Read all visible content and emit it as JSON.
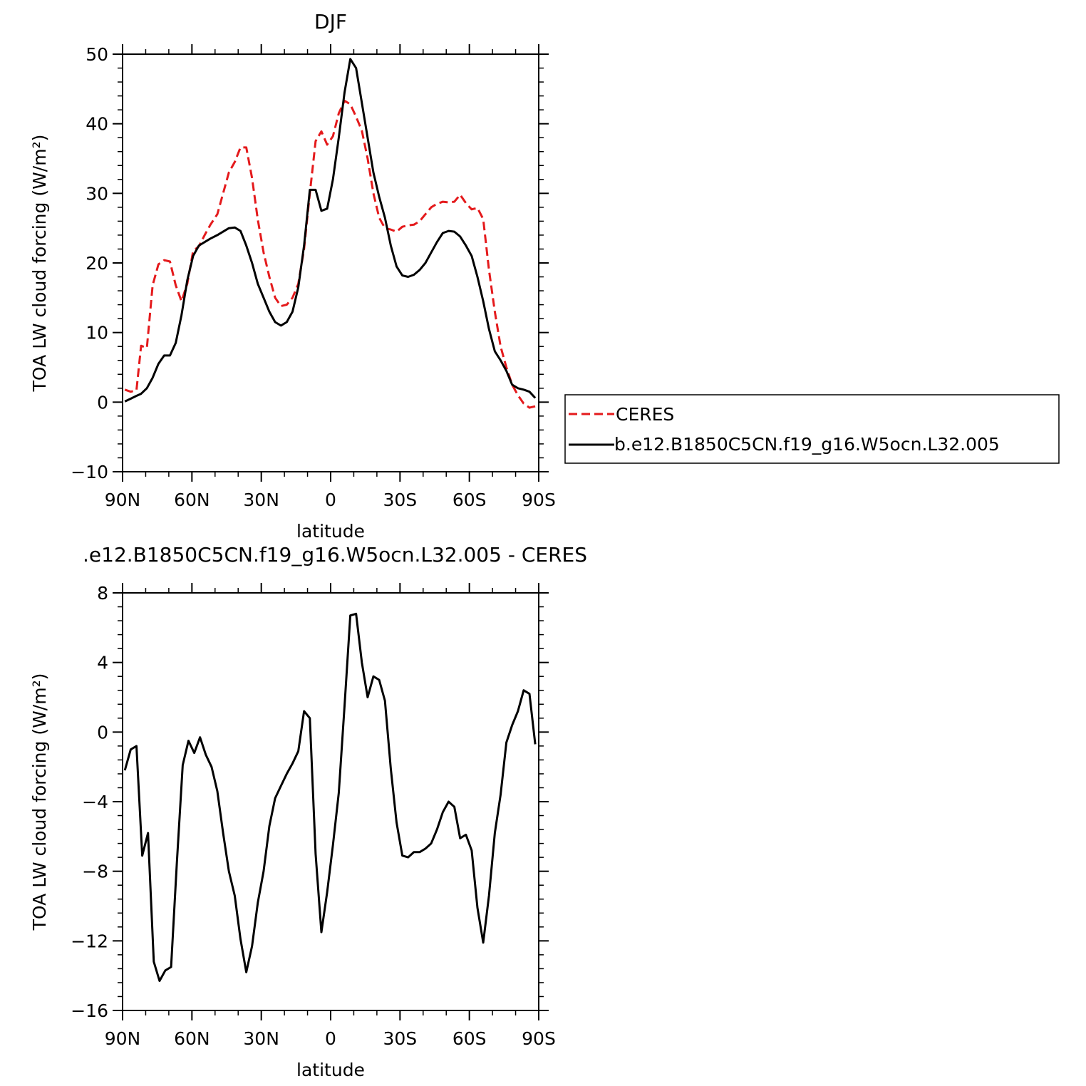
{
  "chart_data": [
    {
      "type": "line",
      "title": "DJF",
      "xlabel": "latitude",
      "ylabel": "TOA LW cloud forcing (W/m²)",
      "ylim": [
        -10,
        50
      ],
      "xlim": [
        90,
        -90
      ],
      "yticks": [
        -10,
        0,
        10,
        20,
        30,
        40,
        50
      ],
      "xticks": [
        {
          "value": 90,
          "label": "90N"
        },
        {
          "value": 60,
          "label": "60N"
        },
        {
          "value": 30,
          "label": "30N"
        },
        {
          "value": 0,
          "label": "0"
        },
        {
          "value": -30,
          "label": "30S"
        },
        {
          "value": -60,
          "label": "60S"
        },
        {
          "value": -90,
          "label": "90S"
        }
      ],
      "legend": "right",
      "series": [
        {
          "name": "CERES",
          "color": "#e41a1c",
          "dash": "dashed",
          "x": [
            89,
            86.5,
            84,
            82,
            79.5,
            77,
            74.5,
            72,
            69.5,
            67,
            64.5,
            62,
            59.5,
            57,
            54.5,
            52,
            49,
            46.5,
            44,
            41.5,
            39,
            36.5,
            34,
            31.5,
            29,
            26.5,
            24,
            21.5,
            19,
            16.5,
            14,
            11.5,
            9,
            6.5,
            4,
            1.5,
            -1,
            -3.5,
            -6,
            -8.5,
            -11,
            -13.5,
            -16,
            -18.5,
            -21,
            -23.5,
            -26,
            -28.5,
            -31,
            -33.5,
            -36,
            -38.5,
            -41,
            -43.5,
            -46,
            -48.5,
            -51,
            -53.5,
            -56,
            -58.5,
            -61,
            -63.5,
            -66,
            -68.5,
            -71,
            -73.5,
            -76,
            -78.5,
            -81,
            -83.5,
            -86,
            -88.5
          ],
          "values": [
            1.8,
            1.5,
            1.7,
            8.1,
            7.8,
            16.8,
            19.8,
            20.4,
            20.2,
            16.8,
            14.5,
            17.0,
            21.7,
            22.4,
            24.0,
            25.5,
            27.0,
            30.0,
            33.0,
            34.5,
            36.6,
            36.6,
            32.2,
            26.2,
            21.5,
            18.0,
            15.0,
            13.8,
            14.0,
            15.0,
            17.0,
            22.0,
            30.0,
            37.5,
            38.9,
            37.0,
            38.2,
            41.5,
            43.3,
            42.8,
            41.0,
            39.0,
            35.0,
            30.0,
            26.5,
            25.0,
            24.8,
            24.5,
            25.2,
            25.4,
            25.5,
            26.0,
            27.0,
            28.0,
            28.5,
            28.8,
            28.7,
            28.8,
            29.8,
            28.6,
            27.7,
            27.9,
            26.3,
            19.0,
            13.0,
            8.0,
            5.0,
            2.5,
            1.0,
            -0.2,
            -0.8,
            -0.6
          ]
        },
        {
          "name": "b.e12.B1850C5CN.f19_g16.W5ocn.L32.005",
          "color": "#000000",
          "dash": "solid",
          "x": [
            89,
            86.5,
            84,
            82,
            79.5,
            77,
            74.5,
            72,
            69.5,
            67,
            64.5,
            62,
            59.5,
            57,
            54.5,
            52,
            49,
            46.5,
            44,
            41.5,
            39,
            36.5,
            34,
            31.5,
            29,
            26.5,
            24,
            21.5,
            19,
            16.5,
            14,
            11.5,
            9,
            6.5,
            4,
            1.5,
            -1,
            -3.5,
            -6,
            -8.5,
            -11,
            -13.5,
            -16,
            -18.5,
            -21,
            -23.5,
            -26,
            -28.5,
            -31,
            -33.5,
            -36,
            -38.5,
            -41,
            -43.5,
            -46,
            -48.5,
            -51,
            -53.5,
            -56,
            -58.5,
            -61,
            -63.5,
            -66,
            -68.5,
            -71,
            -73.5,
            -76,
            -78.5,
            -81,
            -83.5,
            -86,
            -88.5
          ],
          "values": [
            0.1,
            0.5,
            0.9,
            1.2,
            2.0,
            3.5,
            5.5,
            6.7,
            6.7,
            8.5,
            12.5,
            17.5,
            21.0,
            22.5,
            23.0,
            23.5,
            24.0,
            24.5,
            25.0,
            25.1,
            24.6,
            22.5,
            20.0,
            17.0,
            15.0,
            13.0,
            11.5,
            11.0,
            11.5,
            13.0,
            16.5,
            22.5,
            30.5,
            30.5,
            27.5,
            27.8,
            32.0,
            38.0,
            44.5,
            49.3,
            48.0,
            43.0,
            38.0,
            33.0,
            29.5,
            26.5,
            22.5,
            19.5,
            18.2,
            18.0,
            18.3,
            19.0,
            20.0,
            21.5,
            23.0,
            24.3,
            24.6,
            24.5,
            23.8,
            22.5,
            21.0,
            18.0,
            14.5,
            10.5,
            7.3,
            6.0,
            4.5,
            2.5,
            2.0,
            1.8,
            1.5,
            0.6
          ]
        }
      ]
    },
    {
      "type": "line",
      "title": ".e12.B1850C5CN.f19_g16.W5ocn.L32.005 - CERES",
      "xlabel": "latitude",
      "ylabel": "TOA LW cloud forcing (W/m²)",
      "ylim": [
        -16,
        8
      ],
      "xlim": [
        90,
        -90
      ],
      "yticks": [
        -16,
        -12,
        -8,
        -4,
        0,
        4,
        8
      ],
      "xticks": [
        {
          "value": 90,
          "label": "90N"
        },
        {
          "value": 60,
          "label": "60N"
        },
        {
          "value": 30,
          "label": "30N"
        },
        {
          "value": 0,
          "label": "0"
        },
        {
          "value": -30,
          "label": "30S"
        },
        {
          "value": -60,
          "label": "60S"
        },
        {
          "value": -90,
          "label": "90S"
        }
      ],
      "series": [
        {
          "color": "#000000",
          "dash": "solid",
          "x": [
            89,
            86.5,
            84,
            81.5,
            79,
            76.5,
            74,
            71.5,
            69,
            66.5,
            64,
            61.5,
            59,
            56.5,
            54,
            51.5,
            49,
            46.5,
            44,
            41.5,
            39,
            36.5,
            34,
            31.5,
            29,
            26.5,
            24,
            21.5,
            19,
            16.5,
            14,
            11.5,
            9,
            6.5,
            4,
            1.5,
            -1,
            -3.5,
            -6,
            -8.5,
            -11,
            -13.5,
            -16,
            -18.5,
            -21,
            -23.5,
            -26,
            -28.5,
            -31,
            -33.5,
            -36,
            -38.5,
            -41,
            -43.5,
            -46,
            -48.5,
            -51,
            -53.5,
            -56,
            -58.5,
            -61,
            -63.5,
            -66,
            -68.5,
            -71,
            -73.5,
            -76,
            -78.5,
            -81,
            -83.5,
            -86,
            -88.5
          ],
          "values": [
            -2.2,
            -1.0,
            -0.8,
            -7.1,
            -5.8,
            -13.2,
            -14.3,
            -13.7,
            -13.5,
            -7.5,
            -1.9,
            -0.5,
            -1.2,
            -0.3,
            -1.3,
            -2.0,
            -3.4,
            -5.8,
            -8.0,
            -9.4,
            -11.9,
            -13.8,
            -12.3,
            -9.8,
            -8.0,
            -5.4,
            -3.8,
            -3.1,
            -2.4,
            -1.8,
            -1.1,
            1.2,
            0.8,
            -7.0,
            -11.5,
            -9.2,
            -6.5,
            -3.5,
            1.5,
            6.7,
            6.8,
            4.0,
            2.0,
            3.2,
            3.0,
            1.8,
            -2.1,
            -5.2,
            -7.1,
            -7.2,
            -6.9,
            -6.9,
            -6.7,
            -6.4,
            -5.6,
            -4.6,
            -4.0,
            -4.3,
            -6.1,
            -5.9,
            -6.8,
            -10.1,
            -12.1,
            -9.4,
            -5.8,
            -3.6,
            -0.6,
            0.4,
            1.2,
            2.4,
            2.2,
            -0.7
          ]
        }
      ]
    }
  ]
}
